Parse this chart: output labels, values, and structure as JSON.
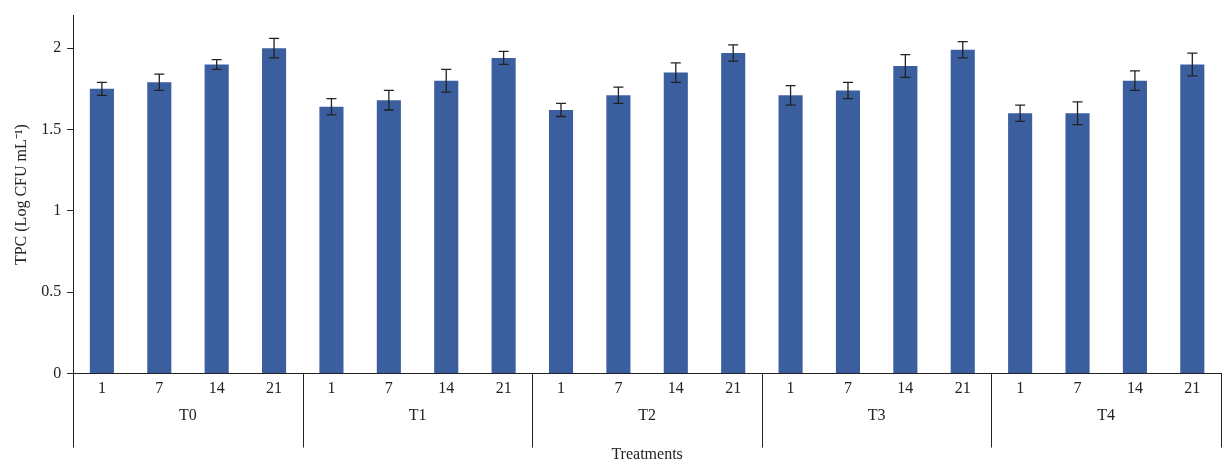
{
  "chart_data": {
    "type": "bar",
    "ylabel": "TPC (Log CFU mL⁻¹)",
    "xlabel": "Treatments",
    "categories": [
      "1",
      "7",
      "14",
      "21",
      "1",
      "7",
      "14",
      "21",
      "1",
      "7",
      "14",
      "21",
      "1",
      "7",
      "14",
      "21",
      "1",
      "7",
      "14",
      "21"
    ],
    "annotations": [
      "T0",
      "T1",
      "T2",
      "T3",
      "T4"
    ],
    "values": [
      1.75,
      1.79,
      1.9,
      2.0,
      1.64,
      1.68,
      1.8,
      1.94,
      1.62,
      1.71,
      1.85,
      1.97,
      1.71,
      1.74,
      1.89,
      1.99,
      1.6,
      1.6,
      1.8,
      1.9
    ],
    "errors": [
      0.04,
      0.05,
      0.03,
      0.06,
      0.05,
      0.06,
      0.07,
      0.04,
      0.04,
      0.05,
      0.06,
      0.05,
      0.06,
      0.05,
      0.07,
      0.05,
      0.05,
      0.07,
      0.06,
      0.07
    ],
    "color": "#3b5e9e",
    "ylim": [
      0,
      2.2
    ],
    "yticks": [
      0,
      0.5,
      1,
      1.5,
      2
    ],
    "grid": false,
    "legend": false
  }
}
